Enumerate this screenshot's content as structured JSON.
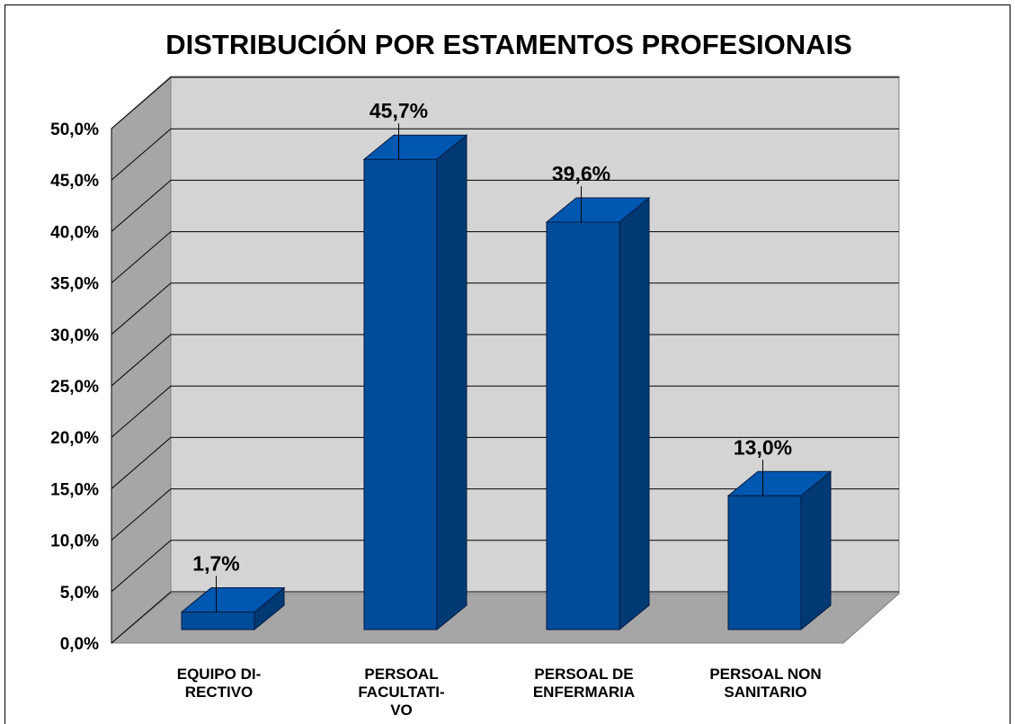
{
  "chart_data": {
    "type": "bar3d",
    "title": "DISTRIBUCIÓN POR ESTAMENTOS PROFESIONAIS",
    "categories": [
      "EQUIPO DI-\nRECTIVO",
      "PERSOAL\nFACULTATI-\nVO",
      "PERSOAL DE\nENFERMARIA",
      "PERSOAL NON\nSANITARIO"
    ],
    "values": [
      1.7,
      45.7,
      39.6,
      13.0
    ],
    "value_labels": [
      "1,7%",
      "45,7%",
      "39,6%",
      "13,0%"
    ],
    "color": "#004c99",
    "ylim": [
      0,
      50
    ],
    "yticks": [
      {
        "value": 0,
        "label": "0,0%"
      },
      {
        "value": 5,
        "label": "5,0%"
      },
      {
        "value": 10,
        "label": "10,0%"
      },
      {
        "value": 15,
        "label": "15,0%"
      },
      {
        "value": 20,
        "label": "20,0%"
      },
      {
        "value": 25,
        "label": "25,0%"
      },
      {
        "value": 30,
        "label": "30,0%"
      },
      {
        "value": 35,
        "label": "35,0%"
      },
      {
        "value": 40,
        "label": "40,0%"
      },
      {
        "value": 45,
        "label": "45,0%"
      },
      {
        "value": 50,
        "label": "50,0%"
      }
    ],
    "grid": true
  }
}
